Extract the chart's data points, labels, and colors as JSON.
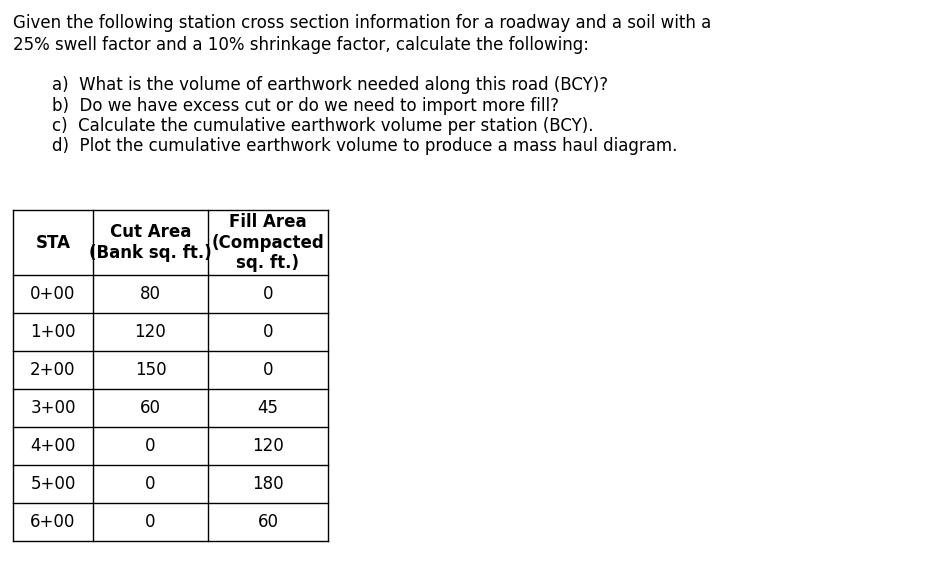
{
  "title_line1": "Given the following station cross section information for a roadway and a soil with a",
  "title_line2": "25% swell factor and a 10% shrinkage factor, calculate the following:",
  "questions": [
    "a)  What is the volume of earthwork needed along this road (BCY)?",
    "b)  Do we have excess cut or do we need to import more fill?",
    "c)  Calculate the cumulative earthwork volume per station (BCY).",
    "d)  Plot the cumulative earthwork volume to produce a mass haul diagram."
  ],
  "col_headers": [
    "STA",
    "Cut Area\n(Bank sq. ft.)",
    "Fill Area\n(Compacted\nsq. ft.)"
  ],
  "stations": [
    "0+00",
    "1+00",
    "2+00",
    "3+00",
    "4+00",
    "5+00",
    "6+00"
  ],
  "cut_areas": [
    80,
    120,
    150,
    60,
    0,
    0,
    0
  ],
  "fill_areas": [
    0,
    0,
    0,
    45,
    120,
    180,
    60
  ],
  "bg_color": "#ffffff",
  "text_color": "#000000",
  "title_fontsize": 12.0,
  "question_fontsize": 12.0,
  "table_fontsize": 12.0
}
